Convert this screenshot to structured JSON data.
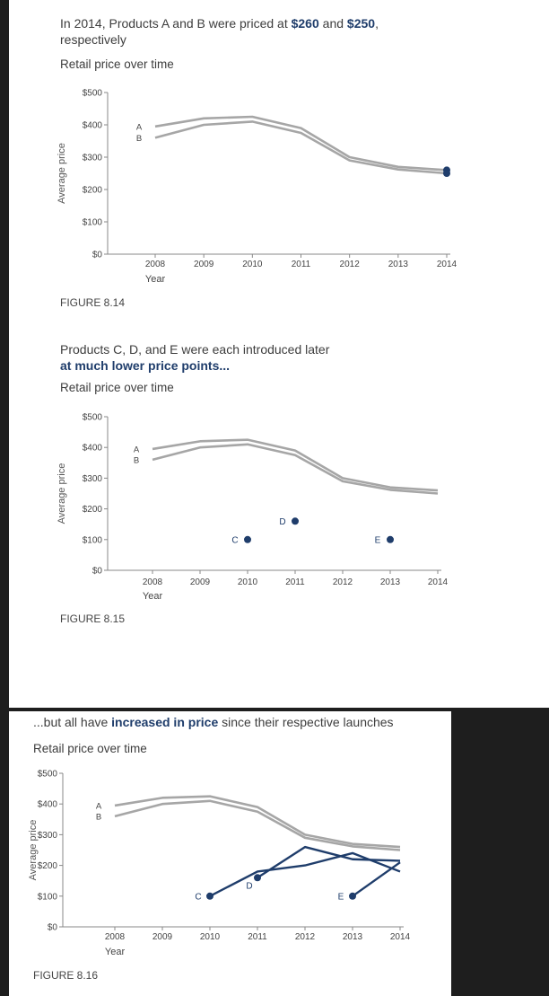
{
  "colors": {
    "grey_series": "#a6a6a6",
    "highlight": "#1f3d6b",
    "text": "#3d3d3d"
  },
  "chart_data": [
    {
      "type": "line",
      "title_parts": [
        {
          "text": "In 2014, Products A and B were priced at ",
          "bold": false
        },
        {
          "text": "$260",
          "bold": true
        },
        {
          "text": " and ",
          "bold": false
        },
        {
          "text": "$250",
          "bold": true
        },
        {
          "text": ",",
          "bold": false
        },
        {
          "text": "respectively",
          "bold": false,
          "newline": true
        }
      ],
      "subtitle": "Retail price over time",
      "ylabel": "Average price",
      "xlabel": "Year",
      "x_ticks": [
        "2008",
        "2009",
        "2010",
        "2011",
        "2012",
        "2013",
        "2014"
      ],
      "y_ticks": [
        "$500",
        "$400",
        "$300",
        "$200",
        "$100",
        "$0"
      ],
      "ylim": [
        0,
        500
      ],
      "series": [
        {
          "name": "A",
          "x": [
            2008,
            2009,
            2010,
            2011,
            2012,
            2013,
            2014
          ],
          "y": [
            395,
            420,
            425,
            390,
            300,
            270,
            260
          ]
        },
        {
          "name": "B",
          "x": [
            2008,
            2009,
            2010,
            2011,
            2012,
            2013,
            2014
          ],
          "y": [
            360,
            400,
            410,
            375,
            290,
            262,
            250
          ]
        }
      ],
      "markers": [
        {
          "series": "A",
          "x": 2014,
          "y": 260
        },
        {
          "series": "B",
          "x": 2014,
          "y": 250
        }
      ],
      "figure_label": "FIGURE 8.14"
    },
    {
      "type": "line",
      "title_parts": [
        {
          "text": "Products C, D, and E were each introduced later",
          "bold": false
        },
        {
          "text": "at much lower price points...",
          "bold": true,
          "newline": true
        }
      ],
      "subtitle": "Retail price over time",
      "ylabel": "Average price",
      "xlabel": "Year",
      "x_ticks": [
        "2008",
        "2009",
        "2010",
        "2011",
        "2012",
        "2013",
        "2014"
      ],
      "y_ticks": [
        "$500",
        "$400",
        "$300",
        "$200",
        "$100",
        "$0"
      ],
      "ylim": [
        0,
        500
      ],
      "series": [
        {
          "name": "A",
          "x": [
            2008,
            2009,
            2010,
            2011,
            2012,
            2013,
            2014
          ],
          "y": [
            395,
            420,
            425,
            390,
            300,
            270,
            260
          ]
        },
        {
          "name": "B",
          "x": [
            2008,
            2009,
            2010,
            2011,
            2012,
            2013,
            2014
          ],
          "y": [
            360,
            400,
            410,
            375,
            290,
            262,
            250
          ]
        }
      ],
      "points": [
        {
          "name": "C",
          "x": 2010,
          "y": 100
        },
        {
          "name": "D",
          "x": 2011,
          "y": 160
        },
        {
          "name": "E",
          "x": 2013,
          "y": 100
        }
      ],
      "figure_label": "FIGURE 8.15"
    },
    {
      "type": "line",
      "title_parts": [
        {
          "text": "...but all have ",
          "bold": false
        },
        {
          "text": "increased in price",
          "bold": true
        },
        {
          "text": " since their respective launches",
          "bold": false
        }
      ],
      "subtitle": "Retail price over time",
      "ylabel": "Average price",
      "xlabel": "Year",
      "x_ticks": [
        "2008",
        "2009",
        "2010",
        "2011",
        "2012",
        "2013",
        "2014"
      ],
      "y_ticks": [
        "$500",
        "$400",
        "$300",
        "$200",
        "$100",
        "$0"
      ],
      "ylim": [
        0,
        500
      ],
      "series": [
        {
          "name": "A",
          "x": [
            2008,
            2009,
            2010,
            2011,
            2012,
            2013,
            2014
          ],
          "y": [
            395,
            420,
            425,
            390,
            300,
            270,
            260
          ]
        },
        {
          "name": "B",
          "x": [
            2008,
            2009,
            2010,
            2011,
            2012,
            2013,
            2014
          ],
          "y": [
            360,
            400,
            410,
            375,
            290,
            262,
            250
          ]
        },
        {
          "name": "C",
          "x": [
            2010,
            2011,
            2012,
            2013,
            2014
          ],
          "y": [
            100,
            180,
            200,
            240,
            180
          ]
        },
        {
          "name": "D",
          "x": [
            2011,
            2012,
            2013,
            2014
          ],
          "y": [
            160,
            260,
            220,
            215
          ]
        },
        {
          "name": "E",
          "x": [
            2013,
            2014
          ],
          "y": [
            100,
            210
          ]
        }
      ],
      "figure_label": "FIGURE 8.16"
    }
  ]
}
